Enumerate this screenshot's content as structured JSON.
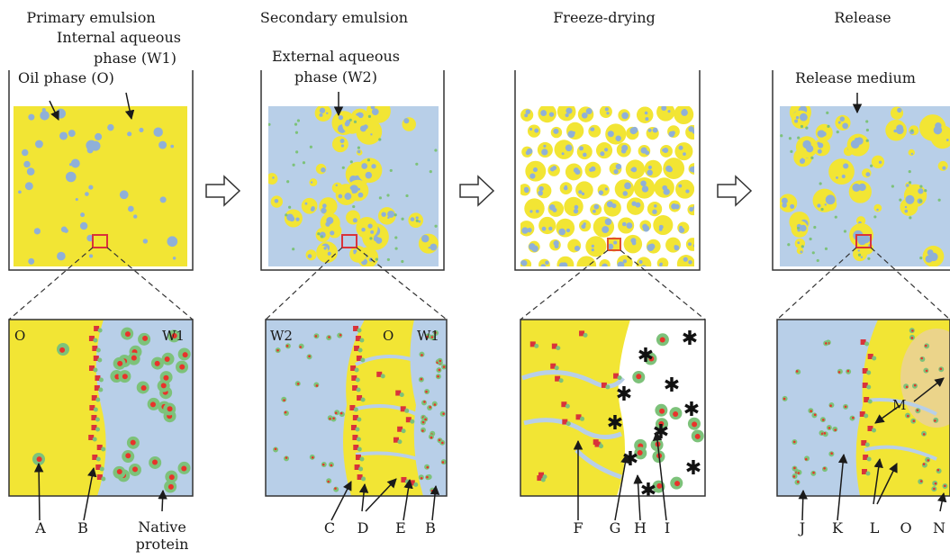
{
  "colors": {
    "oil": "#f2e534",
    "aqueous": "#b8cfe8",
    "droplet": "#8fb0d8",
    "protein_shell": "#7dc27a",
    "protein_core": "#e8332b",
    "marker": "#d9333a",
    "outline": "#444444",
    "ice": "#111111"
  },
  "icons": [
    "arrow-right-outline-icon",
    "pointer-arrow-icon",
    "asterisk-icon"
  ],
  "panels": [
    {
      "id": "primary",
      "title": "Primary emulsion",
      "callouts": [
        "Internal aqueous",
        "phase (W1)",
        "Oil phase (O)"
      ],
      "zoom_labels": [
        "O",
        "W1"
      ],
      "letters": [
        "A",
        "B",
        "Native",
        "protein"
      ]
    },
    {
      "id": "secondary",
      "title": "Secondary emulsion",
      "callouts": [
        "External aqueous",
        "phase (W2)"
      ],
      "zoom_labels": [
        "W2",
        "O",
        "W1"
      ],
      "letters": [
        "C",
        "D",
        "E",
        "B"
      ]
    },
    {
      "id": "freeze",
      "title": "Freeze-drying",
      "callouts": [],
      "zoom_labels": [],
      "letters": [
        "F",
        "G",
        "H",
        "I"
      ]
    },
    {
      "id": "release",
      "title": "Release",
      "callouts": [
        "Release medium"
      ],
      "zoom_labels": [
        "M"
      ],
      "letters": [
        "J",
        "K",
        "L",
        "O",
        "N"
      ]
    }
  ]
}
